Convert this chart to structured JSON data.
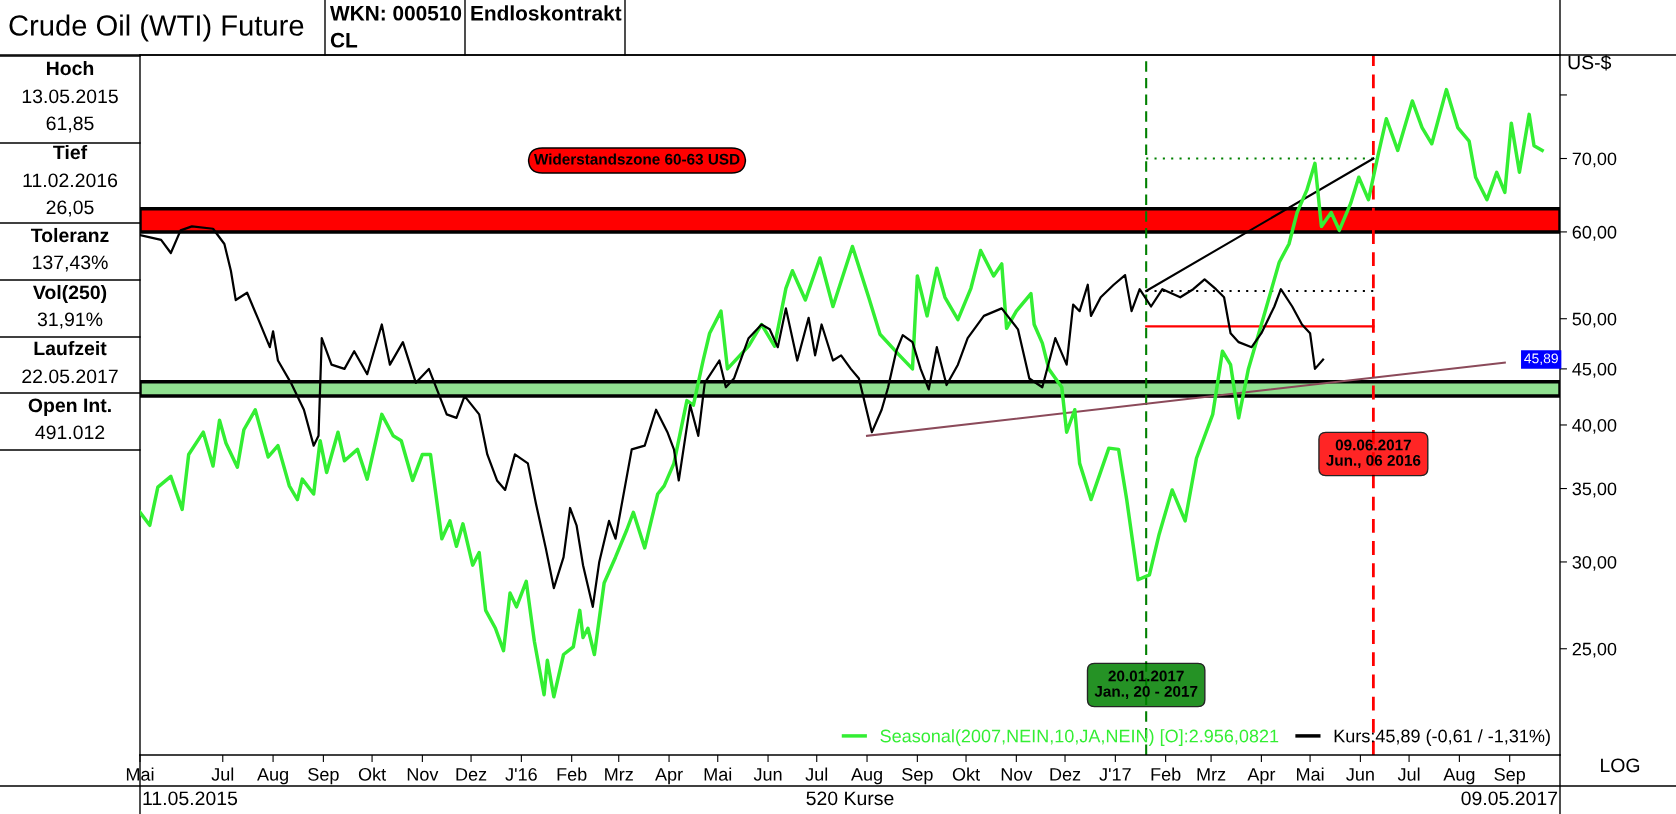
{
  "chart_data": {
    "type": "line",
    "title": "Crude Oil (WTI) Future",
    "ylabel": "US-$",
    "log": true,
    "grid": false,
    "marker": "none",
    "legend": "bottom right",
    "xlim": [
      "2015-05-11",
      "2017-10-02"
    ],
    "ylim": [
      20,
      87
    ],
    "xticks": [
      {
        "value": "2015-05-11",
        "label": "Mai"
      },
      {
        "value": "2015-07-01",
        "label": "Jul"
      },
      {
        "value": "2015-08-01",
        "label": "Aug"
      },
      {
        "value": "2015-09-01",
        "label": "Sep"
      },
      {
        "value": "2015-10-01",
        "label": "Okt"
      },
      {
        "value": "2015-11-01",
        "label": "Nov"
      },
      {
        "value": "2015-12-01",
        "label": "Dez"
      },
      {
        "value": "2016-01-01",
        "label": "J'16"
      },
      {
        "value": "2016-02-01",
        "label": "Feb"
      },
      {
        "value": "2016-03-01",
        "label": "Mrz"
      },
      {
        "value": "2016-04-01",
        "label": "Apr"
      },
      {
        "value": "2016-05-01",
        "label": "Mai"
      },
      {
        "value": "2016-06-01",
        "label": "Jun"
      },
      {
        "value": "2016-07-01",
        "label": "Jul"
      },
      {
        "value": "2016-08-01",
        "label": "Aug"
      },
      {
        "value": "2016-09-01",
        "label": "Sep"
      },
      {
        "value": "2016-10-01",
        "label": "Okt"
      },
      {
        "value": "2016-11-01",
        "label": "Nov"
      },
      {
        "value": "2016-12-01",
        "label": "Dez"
      },
      {
        "value": "2017-01-01",
        "label": "J'17"
      },
      {
        "value": "2017-02-01",
        "label": "Feb"
      },
      {
        "value": "2017-03-01",
        "label": "Mrz"
      },
      {
        "value": "2017-04-01",
        "label": "Apr"
      },
      {
        "value": "2017-05-01",
        "label": "Mai"
      },
      {
        "value": "2017-06-01",
        "label": "Jun"
      },
      {
        "value": "2017-07-01",
        "label": "Jul"
      },
      {
        "value": "2017-08-01",
        "label": "Aug"
      },
      {
        "value": "2017-09-01",
        "label": "Sep"
      }
    ],
    "yticks": [
      {
        "value": 25,
        "label": "25,00"
      },
      {
        "value": 30,
        "label": "30,00"
      },
      {
        "value": 35,
        "label": "35,00"
      },
      {
        "value": 40,
        "label": "40,00"
      },
      {
        "value": 45,
        "label": "45,00"
      },
      {
        "value": 50,
        "label": "50,00"
      },
      {
        "value": 60,
        "label": "60,00"
      },
      {
        "value": 70,
        "label": "70,00"
      },
      {
        "value": 80,
        "label": null
      }
    ],
    "series": [
      {
        "name": "Seasonal(2007,NEIN,10,JA,NEIN) [O]:2.956,0821",
        "color": "#33ee33",
        "x": [
          "2015-05-11",
          "2015-05-17",
          "2015-05-22",
          "2015-05-30",
          "2015-06-06",
          "2015-06-10",
          "2015-06-19",
          "2015-06-25",
          "2015-06-29",
          "2015-07-03",
          "2015-07-10",
          "2015-07-14",
          "2015-07-21",
          "2015-07-29",
          "2015-08-04",
          "2015-08-11",
          "2015-08-16",
          "2015-08-19",
          "2015-08-26",
          "2015-08-30",
          "2015-09-03",
          "2015-09-10",
          "2015-09-14",
          "2015-09-22",
          "2015-09-28",
          "2015-10-07",
          "2015-10-14",
          "2015-10-19",
          "2015-10-26",
          "2015-11-01",
          "2015-11-06",
          "2015-11-13",
          "2015-11-18",
          "2015-11-22",
          "2015-11-26",
          "2015-12-02",
          "2015-12-06",
          "2015-12-10",
          "2015-12-16",
          "2015-12-21",
          "2015-12-25",
          "2015-12-29",
          "2016-01-04",
          "2016-01-09",
          "2016-01-15",
          "2016-01-17",
          "2016-01-21",
          "2016-01-27",
          "2016-02-02",
          "2016-02-06",
          "2016-02-08",
          "2016-02-11",
          "2016-02-15",
          "2016-02-21",
          "2016-02-28",
          "2016-03-06",
          "2016-03-10",
          "2016-03-17",
          "2016-03-25",
          "2016-03-29",
          "2016-04-04",
          "2016-04-12",
          "2016-04-16",
          "2016-04-22",
          "2016-04-26",
          "2016-05-03",
          "2016-05-07",
          "2016-05-20",
          "2016-05-28",
          "2016-06-05",
          "2016-06-12",
          "2016-06-16",
          "2016-06-24",
          "2016-07-03",
          "2016-07-11",
          "2016-07-23",
          "2016-08-02",
          "2016-08-09",
          "2016-08-21",
          "2016-08-29",
          "2016-09-01",
          "2016-09-07",
          "2016-09-13",
          "2016-09-18",
          "2016-09-26",
          "2016-10-04",
          "2016-10-10",
          "2016-10-18",
          "2016-10-23",
          "2016-10-26",
          "2016-11-01",
          "2016-11-10",
          "2016-11-12",
          "2016-11-17",
          "2016-11-21",
          "2016-11-29",
          "2016-12-02",
          "2016-12-07",
          "2016-12-10",
          "2016-12-17",
          "2016-12-28",
          "2017-01-03",
          "2017-01-08",
          "2017-01-15",
          "2017-01-22",
          "2017-01-28",
          "2017-02-05",
          "2017-02-13",
          "2017-02-20",
          "2017-03-02",
          "2017-03-08",
          "2017-03-13",
          "2017-03-18",
          "2017-03-24",
          "2017-04-01",
          "2017-04-12",
          "2017-04-18",
          "2017-04-23",
          "2017-04-29",
          "2017-05-04",
          "2017-05-08",
          "2017-05-14",
          "2017-05-19",
          "2017-05-26",
          "2017-05-31",
          "2017-06-06",
          "2017-06-12",
          "2017-06-17",
          "2017-06-24",
          "2017-07-03",
          "2017-07-09",
          "2017-07-15",
          "2017-07-24",
          "2017-07-31",
          "2017-08-07",
          "2017-08-11",
          "2017-08-18",
          "2017-08-24",
          "2017-08-29",
          "2017-09-02",
          "2017-09-07",
          "2017-09-13",
          "2017-09-16",
          "2017-09-21"
        ],
        "values": [
          33.3,
          32.4,
          35.1,
          35.9,
          33.5,
          37.6,
          39.4,
          36.7,
          40.4,
          38.5,
          36.6,
          39.6,
          41.3,
          37.4,
          38.3,
          35.2,
          34.2,
          35.7,
          34.6,
          38.7,
          36.2,
          39.4,
          37.1,
          38.0,
          35.7,
          40.9,
          39.1,
          38.7,
          35.6,
          37.6,
          37.6,
          31.5,
          32.7,
          31.0,
          32.5,
          29.8,
          30.6,
          27.1,
          26.1,
          24.9,
          28.1,
          27.3,
          28.8,
          25.4,
          22.7,
          24.4,
          22.6,
          24.7,
          25.1,
          27.1,
          25.6,
          26.1,
          24.7,
          28.7,
          30.3,
          32.1,
          33.3,
          30.9,
          34.6,
          35.2,
          36.9,
          42.1,
          41.7,
          45.8,
          48.5,
          50.8,
          45.0,
          47.2,
          49.4,
          47.2,
          53.3,
          55.3,
          52.0,
          56.8,
          51.3,
          58.2,
          52.3,
          48.4,
          46.3,
          45.0,
          54.7,
          50.3,
          55.6,
          52.3,
          49.9,
          53.3,
          57.7,
          54.7,
          56.1,
          49.0,
          50.8,
          52.7,
          49.4,
          47.5,
          45.0,
          43.3,
          39.4,
          41.3,
          36.9,
          34.2,
          38.1,
          38.0,
          34.2,
          28.9,
          29.2,
          31.8,
          34.9,
          32.7,
          37.3,
          40.9,
          46.7,
          45.4,
          40.6,
          45.0,
          49.4,
          56.3,
          58.5,
          62.5,
          65.5,
          69.3,
          60.7,
          62.5,
          60.2,
          63.7,
          67.3,
          64.2,
          70.6,
          76.1,
          71.2,
          79.0,
          74.7,
          72.2,
          80.9,
          74.7,
          72.6,
          67.3,
          64.2,
          68.0,
          65.2,
          75.4,
          68.0,
          76.8,
          71.9,
          71.2
        ]
      },
      {
        "name": "Kurs:45,89 (-0,61 / -1,31%)",
        "color": "#000000",
        "x": [
          "2015-05-11",
          "2015-05-24",
          "2015-05-30",
          "2015-06-05",
          "2015-06-12",
          "2015-06-25",
          "2015-07-02",
          "2015-07-06",
          "2015-07-09",
          "2015-07-16",
          "2015-07-23",
          "2015-07-30",
          "2015-08-01",
          "2015-08-04",
          "2015-08-12",
          "2015-08-20",
          "2015-08-26",
          "2015-08-29",
          "2015-08-31",
          "2015-09-06",
          "2015-09-14",
          "2015-09-20",
          "2015-09-28",
          "2015-10-07",
          "2015-10-12",
          "2015-10-20",
          "2015-10-28",
          "2015-11-05",
          "2015-11-16",
          "2015-11-22",
          "2015-11-27",
          "2015-12-06",
          "2015-12-11",
          "2015-12-17",
          "2015-12-22",
          "2015-12-28",
          "2016-01-05",
          "2016-01-10",
          "2016-01-16",
          "2016-01-21",
          "2016-01-27",
          "2016-01-31",
          "2016-02-04",
          "2016-02-08",
          "2016-02-14",
          "2016-02-18",
          "2016-02-24",
          "2016-02-28",
          "2016-03-09",
          "2016-03-17",
          "2016-03-24",
          "2016-03-31",
          "2016-04-04",
          "2016-04-07",
          "2016-04-14",
          "2016-04-19",
          "2016-04-23",
          "2016-05-02",
          "2016-05-06",
          "2016-05-11",
          "2016-05-20",
          "2016-05-28",
          "2016-06-02",
          "2016-06-07",
          "2016-06-12",
          "2016-06-19",
          "2016-06-26",
          "2016-06-30",
          "2016-07-04",
          "2016-07-11",
          "2016-07-16",
          "2016-07-22",
          "2016-07-27",
          "2016-08-04",
          "2016-08-10",
          "2016-08-14",
          "2016-08-19",
          "2016-08-23",
          "2016-08-29",
          "2016-09-03",
          "2016-09-08",
          "2016-09-13",
          "2016-09-19",
          "2016-09-26",
          "2016-10-02",
          "2016-10-12",
          "2016-10-23",
          "2016-11-02",
          "2016-11-09",
          "2016-11-17",
          "2016-11-25",
          "2016-12-02",
          "2016-12-06",
          "2016-12-10",
          "2016-12-15",
          "2016-12-17",
          "2016-12-23",
          "2016-12-31",
          "2017-01-07",
          "2017-01-11",
          "2017-01-16",
          "2017-01-23",
          "2017-01-30",
          "2017-02-10",
          "2017-02-18",
          "2017-02-25",
          "2017-03-04",
          "2017-03-09",
          "2017-03-13",
          "2017-03-18",
          "2017-03-26",
          "2017-04-01",
          "2017-04-09",
          "2017-04-13",
          "2017-04-20",
          "2017-04-26",
          "2017-05-01",
          "2017-05-04",
          "2017-05-09"
        ],
        "values": [
          59.6,
          59.0,
          57.4,
          60.2,
          60.7,
          60.4,
          58.5,
          55.3,
          52.0,
          52.8,
          49.9,
          47.1,
          48.7,
          45.8,
          43.7,
          41.3,
          38.3,
          39.1,
          48.0,
          45.4,
          45.0,
          46.7,
          44.5,
          49.4,
          45.4,
          47.6,
          43.7,
          45.0,
          40.9,
          40.6,
          42.5,
          40.9,
          37.6,
          35.6,
          34.9,
          37.6,
          36.9,
          33.9,
          30.9,
          28.4,
          30.3,
          33.6,
          32.4,
          29.8,
          27.3,
          30.0,
          32.7,
          31.5,
          38.0,
          38.3,
          41.3,
          39.4,
          38.0,
          35.6,
          41.7,
          39.1,
          43.7,
          45.8,
          43.3,
          44.1,
          48.0,
          49.4,
          48.9,
          47.1,
          51.1,
          45.8,
          50.1,
          46.3,
          49.4,
          45.8,
          46.3,
          45.0,
          44.1,
          39.4,
          41.3,
          43.3,
          46.7,
          48.3,
          47.6,
          45.0,
          43.1,
          47.1,
          43.5,
          45.4,
          48.0,
          50.3,
          51.1,
          48.9,
          44.1,
          43.3,
          48.0,
          45.4,
          51.5,
          50.8,
          53.7,
          50.3,
          52.3,
          53.7,
          54.8,
          50.8,
          53.2,
          51.3,
          53.2,
          52.3,
          53.2,
          54.3,
          53.2,
          52.3,
          48.5,
          47.6,
          47.1,
          48.5,
          51.3,
          53.2,
          51.3,
          49.4,
          48.5,
          45.0,
          45.89
        ]
      },
      {
        "color": "#8b4a5a",
        "x": [
          "2016-08-01",
          "2017-08-29"
        ],
        "values": [
          39.1,
          45.6
        ]
      },
      {
        "color": "#008000",
        "line_style": "dotted",
        "x": [
          "2017-01-20",
          "2017-06-09"
        ],
        "values": [
          70,
          70
        ]
      },
      {
        "color": "#000000",
        "line_style": "dotted",
        "x": [
          "2017-01-20",
          "2017-06-09"
        ],
        "values": [
          53.0,
          53.0
        ]
      },
      {
        "color": "#ff0000",
        "x": [
          "2017-01-20",
          "2017-06-09"
        ],
        "values": [
          49.2,
          49.2
        ]
      },
      {
        "color": "#000000",
        "x": [
          "2017-01-20",
          "2017-06-09"
        ],
        "values": [
          53.0,
          70
        ]
      }
    ],
    "bands": [
      {
        "axis": "y",
        "from": 60,
        "to": 63,
        "label": "Widerstandszone 60-63 USD",
        "color": "#ff0000"
      },
      {
        "axis": "y",
        "from": 42.5,
        "to": 43.8,
        "color": "#90e090"
      }
    ],
    "ref_lines": [
      {
        "axis": "x",
        "value": "2017-01-20",
        "label": "20.01.2017\nJan., 20 - 2017",
        "color": "#008000",
        "line_style": "dashed"
      },
      {
        "axis": "x",
        "value": "2017-06-09",
        "label": "09.06.2017\nJun., 06 2016",
        "color": "#ff0000",
        "line_style": "dashed"
      }
    ],
    "annotations": [
      "WKN: 000510",
      "CL",
      "Endloskontrakt",
      "Hoch",
      "13.05.2015",
      "61,85",
      "Tief",
      "11.02.2016",
      "26,05",
      "Toleranz",
      "137,43%",
      "Vol(250)",
      "31,91%",
      "Laufzeit",
      "22.05.2017",
      "Open Int.",
      "491.012",
      "11.05.2015",
      "520 Kurse",
      "09.05.2017",
      "LOG",
      "45,89"
    ]
  }
}
